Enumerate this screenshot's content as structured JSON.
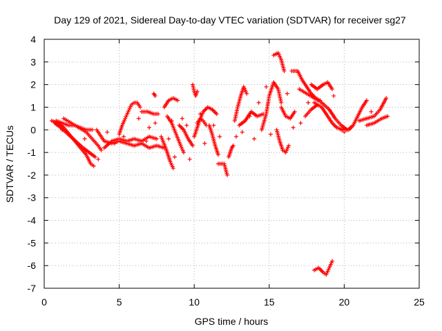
{
  "chart_data": {
    "type": "scatter",
    "title": "Day 129 of 2021, Sidereal Day-to-day VTEC variation (SDTVAR) for receiver sg27",
    "xlabel": "GPS time / hours",
    "ylabel": "SDTVAR / TECUs",
    "xlim": [
      0,
      25
    ],
    "ylim": [
      -7,
      4
    ],
    "xticks": [
      0,
      5,
      10,
      15,
      20,
      25
    ],
    "yticks": [
      -7,
      -6,
      -5,
      -4,
      -3,
      -2,
      -1,
      0,
      1,
      2,
      3,
      4
    ],
    "grid": true,
    "marker": "+",
    "color": "#ff0000",
    "segments": [
      [
        [
          0.5,
          0.4
        ],
        [
          0.9,
          0.3
        ],
        [
          1.3,
          0.1
        ],
        [
          1.8,
          -0.3
        ],
        [
          2.3,
          -0.7
        ],
        [
          2.8,
          -1.1
        ],
        [
          3.1,
          -1.5
        ],
        [
          3.3,
          -1.6
        ]
      ],
      [
        [
          0.7,
          0.3
        ],
        [
          1.1,
          0.1
        ],
        [
          1.6,
          -0.2
        ],
        [
          2.1,
          -0.5
        ],
        [
          2.6,
          -0.8
        ],
        [
          3.0,
          -1.0
        ],
        [
          3.4,
          -1.2
        ]
      ],
      [
        [
          1.3,
          0.5
        ],
        [
          1.8,
          0.3
        ],
        [
          2.3,
          0.1
        ],
        [
          2.8,
          -0.1
        ],
        [
          3.2,
          -0.4
        ],
        [
          3.6,
          -0.7
        ],
        [
          3.8,
          -0.9
        ]
      ],
      [
        [
          0.8,
          0.4
        ],
        [
          1.2,
          0.3
        ],
        [
          1.6,
          0.2
        ],
        [
          2.0,
          0.2
        ],
        [
          2.4,
          0.1
        ],
        [
          2.8,
          0.0
        ],
        [
          3.2,
          0.0
        ]
      ],
      [
        [
          3.5,
          0.0
        ],
        [
          4.0,
          -0.5
        ],
        [
          4.5,
          -0.6
        ],
        [
          5.0,
          -0.5
        ],
        [
          5.5,
          -0.6
        ],
        [
          6.0,
          -0.7
        ],
        [
          6.5,
          -0.6
        ],
        [
          7.0,
          -0.8
        ],
        [
          7.5,
          -0.7
        ],
        [
          8.0,
          -0.8
        ]
      ],
      [
        [
          4.0,
          -0.8
        ],
        [
          4.5,
          -0.5
        ],
        [
          5.0,
          -0.4
        ],
        [
          5.5,
          -0.5
        ],
        [
          6.0,
          -0.4
        ],
        [
          6.5,
          -0.5
        ],
        [
          7.0,
          -0.3
        ],
        [
          7.5,
          -0.4
        ]
      ],
      [
        [
          5.0,
          -0.2
        ],
        [
          5.2,
          0.2
        ],
        [
          5.4,
          0.5
        ],
        [
          5.6,
          0.8
        ],
        [
          5.8,
          1.1
        ],
        [
          6.0,
          1.2
        ],
        [
          6.2,
          1.2
        ],
        [
          6.4,
          1.0
        ]
      ],
      [
        [
          6.5,
          0.8
        ],
        [
          6.9,
          0.8
        ],
        [
          7.3,
          0.7
        ],
        [
          7.6,
          0.7
        ]
      ],
      [
        [
          7.3,
          1.6
        ],
        [
          7.4,
          1.5
        ]
      ],
      [
        [
          7.8,
          -0.3
        ],
        [
          8.1,
          -0.8
        ],
        [
          8.4,
          -1.4
        ],
        [
          8.6,
          -1.7
        ]
      ],
      [
        [
          8.2,
          0.6
        ],
        [
          8.5,
          0.3
        ],
        [
          8.8,
          -0.2
        ],
        [
          9.1,
          -0.7
        ],
        [
          9.3,
          -1.0
        ]
      ],
      [
        [
          8.0,
          1.0
        ],
        [
          8.3,
          1.3
        ],
        [
          8.6,
          1.4
        ],
        [
          8.9,
          1.3
        ]
      ],
      [
        [
          9.0,
          0.2
        ],
        [
          9.3,
          0.0
        ],
        [
          9.6,
          -0.4
        ],
        [
          9.9,
          -0.7
        ]
      ],
      [
        [
          9.9,
          2.0
        ],
        [
          10.0,
          1.7
        ],
        [
          10.1,
          1.5
        ],
        [
          10.2,
          1.7
        ]
      ],
      [
        [
          10.0,
          -0.3
        ],
        [
          10.3,
          0.3
        ],
        [
          10.6,
          0.8
        ],
        [
          10.9,
          1.0
        ],
        [
          11.2,
          0.9
        ],
        [
          11.5,
          0.7
        ]
      ],
      [
        [
          10.2,
          0.3
        ],
        [
          10.4,
          0.5
        ],
        [
          10.6,
          0.4
        ],
        [
          10.8,
          0.2
        ]
      ],
      [
        [
          11.0,
          0.2
        ],
        [
          11.2,
          -0.2
        ],
        [
          11.4,
          -0.7
        ],
        [
          11.6,
          -1.1
        ]
      ],
      [
        [
          11.6,
          -1.5
        ],
        [
          12.0,
          -1.5
        ],
        [
          12.2,
          -2.0
        ]
      ],
      [
        [
          12.3,
          -1.2
        ],
        [
          12.5,
          -0.8
        ],
        [
          12.6,
          -0.7
        ]
      ],
      [
        [
          12.7,
          0.4
        ],
        [
          12.9,
          1.0
        ],
        [
          13.1,
          1.5
        ],
        [
          13.3,
          1.9
        ],
        [
          13.5,
          1.6
        ]
      ],
      [
        [
          13.0,
          0.2
        ],
        [
          13.4,
          0.4
        ],
        [
          13.8,
          0.8
        ],
        [
          14.2,
          0.6
        ],
        [
          14.6,
          0.7
        ]
      ],
      [
        [
          14.5,
          0.0
        ],
        [
          14.8,
          0.7
        ],
        [
          15.0,
          1.5
        ],
        [
          15.3,
          2.1
        ],
        [
          15.6,
          1.8
        ],
        [
          15.8,
          1.2
        ]
      ],
      [
        [
          15.3,
          3.3
        ],
        [
          15.6,
          3.4
        ],
        [
          15.8,
          3.1
        ],
        [
          16.0,
          2.6
        ]
      ],
      [
        [
          15.5,
          0.0
        ],
        [
          15.7,
          -0.5
        ],
        [
          15.9,
          -0.9
        ],
        [
          16.1,
          -1.0
        ],
        [
          16.3,
          -0.7
        ]
      ],
      [
        [
          15.8,
          1.0
        ],
        [
          16.1,
          0.6
        ],
        [
          16.4,
          0.5
        ],
        [
          16.7,
          0.8
        ]
      ],
      [
        [
          16.5,
          2.6
        ],
        [
          16.9,
          2.6
        ],
        [
          17.2,
          2.2
        ],
        [
          17.5,
          1.9
        ],
        [
          17.8,
          1.6
        ],
        [
          18.1,
          1.4
        ],
        [
          18.4,
          1.3
        ]
      ],
      [
        [
          17.0,
          1.8
        ],
        [
          17.5,
          1.6
        ],
        [
          18.0,
          1.4
        ],
        [
          18.5,
          1.2
        ],
        [
          19.0,
          0.9
        ],
        [
          19.4,
          0.5
        ],
        [
          19.8,
          0.2
        ],
        [
          20.2,
          0.0
        ]
      ],
      [
        [
          17.8,
          2.0
        ],
        [
          18.2,
          1.8
        ],
        [
          18.6,
          2.0
        ],
        [
          18.9,
          2.1
        ],
        [
          19.2,
          1.8
        ]
      ],
      [
        [
          18.0,
          1.2
        ],
        [
          18.5,
          1.0
        ],
        [
          18.9,
          0.6
        ],
        [
          19.2,
          0.3
        ],
        [
          19.5,
          0.1
        ],
        [
          19.9,
          0.0
        ]
      ],
      [
        [
          17.4,
          0.6
        ],
        [
          17.8,
          0.9
        ],
        [
          18.2,
          1.1
        ]
      ],
      [
        [
          18.0,
          -6.2
        ],
        [
          18.3,
          -6.1
        ],
        [
          18.6,
          -6.3
        ],
        [
          18.8,
          -6.4
        ],
        [
          19.0,
          -6.1
        ],
        [
          19.2,
          -5.8
        ]
      ],
      [
        [
          19.8,
          0.0
        ],
        [
          20.3,
          0.0
        ],
        [
          20.6,
          0.2
        ],
        [
          20.9,
          0.6
        ],
        [
          21.2,
          1.0
        ],
        [
          21.5,
          1.3
        ]
      ],
      [
        [
          21.0,
          0.4
        ],
        [
          21.5,
          0.5
        ],
        [
          22.0,
          0.6
        ],
        [
          22.4,
          0.9
        ],
        [
          22.8,
          1.4
        ]
      ],
      [
        [
          21.5,
          0.2
        ],
        [
          22.0,
          0.3
        ],
        [
          22.5,
          0.5
        ],
        [
          22.9,
          0.6
        ]
      ]
    ],
    "scattered": [
      [
        1.2,
        0.0
      ],
      [
        2.7,
        -0.4
      ],
      [
        3.6,
        -1.3
      ],
      [
        4.2,
        -0.1
      ],
      [
        4.7,
        -0.6
      ],
      [
        5.3,
        -0.3
      ],
      [
        6.3,
        0.5
      ],
      [
        6.8,
        -0.5
      ],
      [
        7.0,
        0.1
      ],
      [
        7.4,
        0.3
      ],
      [
        8.3,
        -0.4
      ],
      [
        8.5,
        0.4
      ],
      [
        8.7,
        -1.2
      ],
      [
        9.2,
        0.5
      ],
      [
        9.5,
        0.2
      ],
      [
        9.7,
        -1.3
      ],
      [
        10.4,
        0.7
      ],
      [
        10.7,
        -0.6
      ],
      [
        11.3,
        0.2
      ],
      [
        11.7,
        -0.3
      ],
      [
        12.8,
        -0.3
      ],
      [
        13.2,
        -0.1
      ],
      [
        13.7,
        0.6
      ],
      [
        14.0,
        -0.4
      ],
      [
        14.3,
        1.2
      ],
      [
        14.8,
        1.9
      ],
      [
        15.1,
        -0.2
      ],
      [
        16.2,
        1.6
      ],
      [
        16.6,
        0.1
      ],
      [
        17.1,
        0.3
      ],
      [
        17.6,
        1.2
      ],
      [
        19.3,
        1.5
      ],
      [
        20.0,
        -0.1
      ],
      [
        20.4,
        0.1
      ],
      [
        21.8,
        0.8
      ]
    ]
  }
}
